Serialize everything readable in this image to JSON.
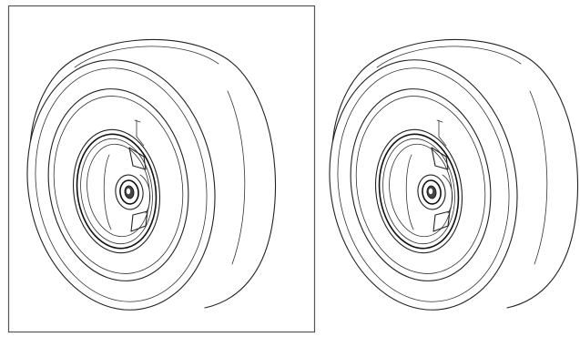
{
  "figures": [
    {
      "id": "wheel-left",
      "framed": true
    },
    {
      "id": "wheel-right",
      "framed": false
    }
  ],
  "colors": {
    "line": "#222222",
    "background": "#ffffff",
    "frame": "#555555"
  }
}
